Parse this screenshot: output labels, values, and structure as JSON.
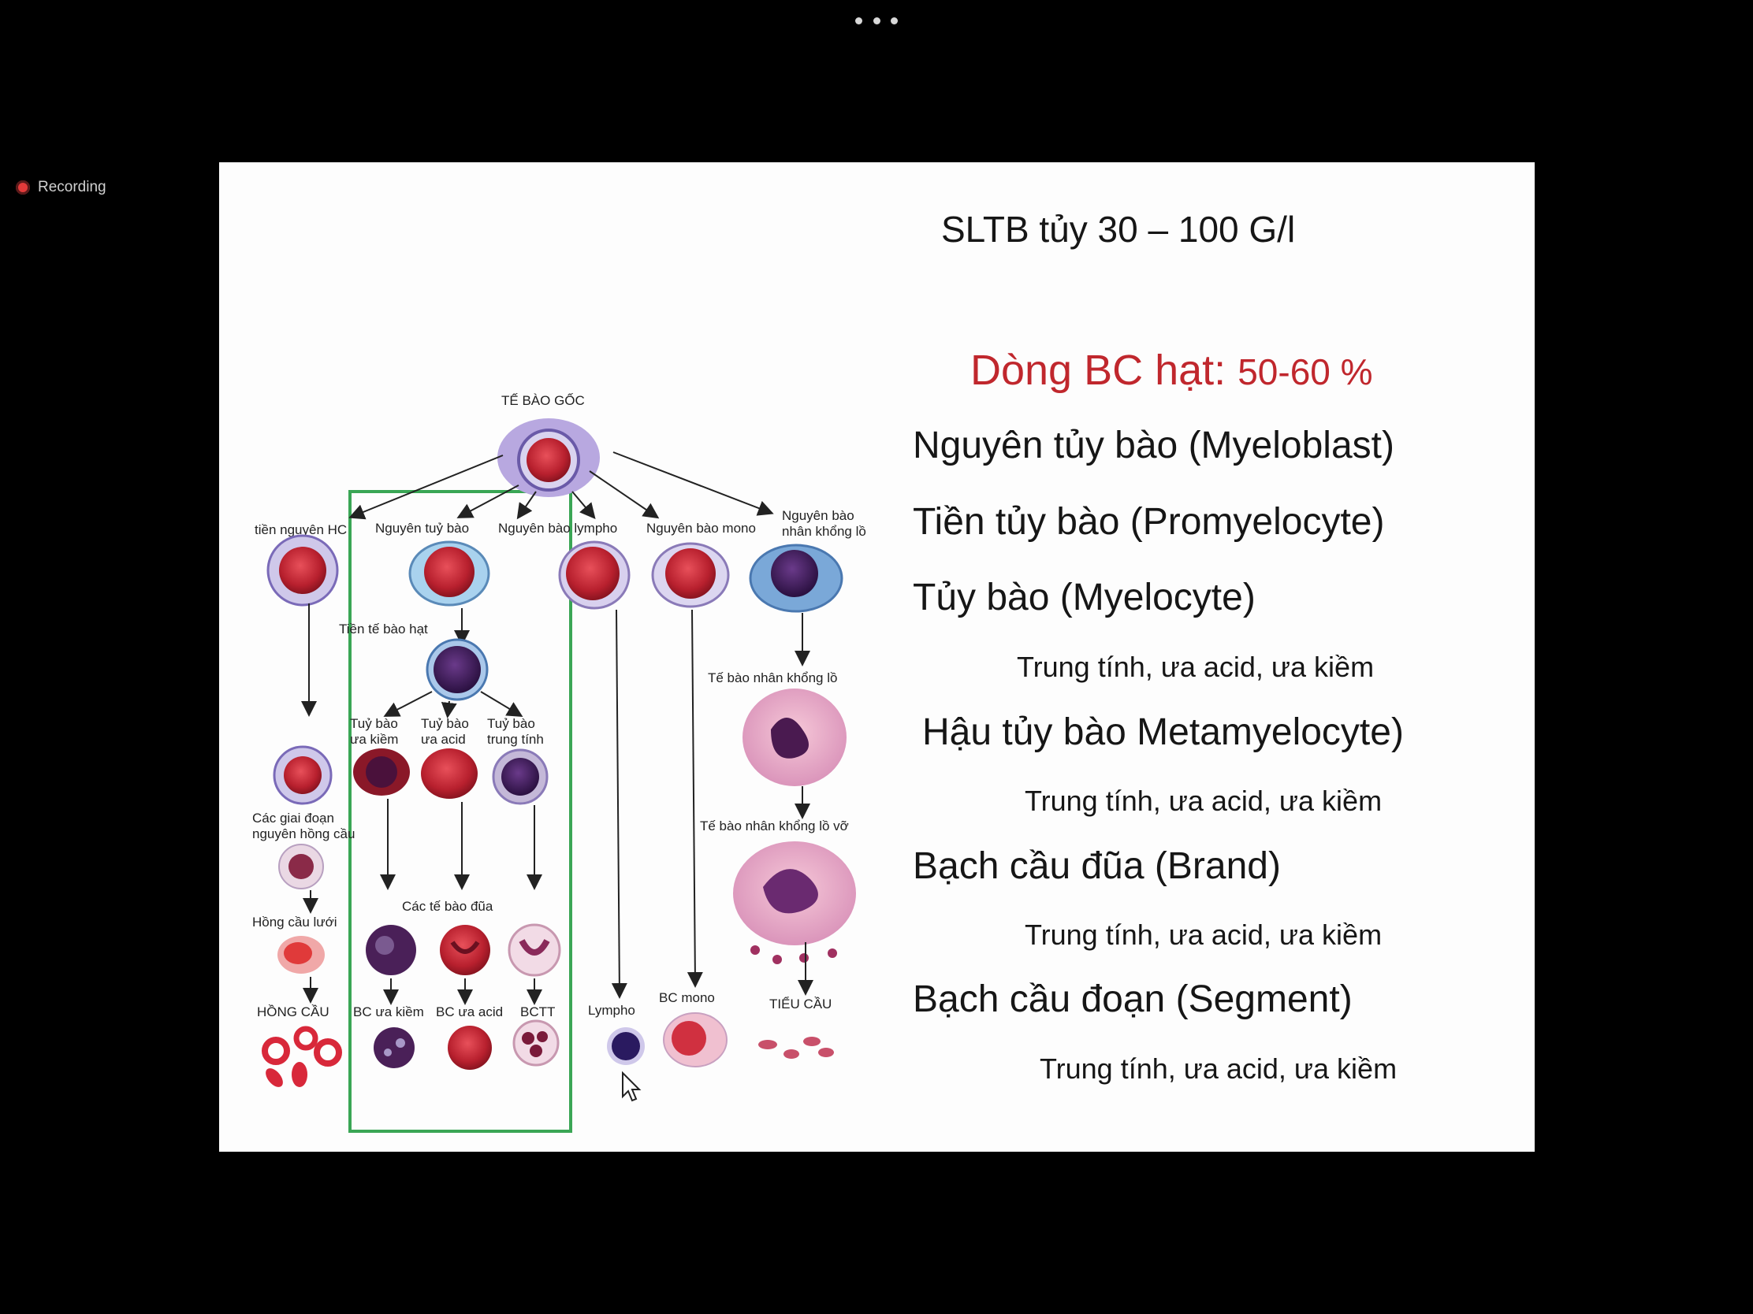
{
  "toolbar": {
    "more_icon": "more-horizontal-icon"
  },
  "recording": {
    "label": "Recording",
    "icon": "record-dot-icon",
    "color": "#e23a3a"
  },
  "slide": {
    "title": "SLTB tủy 30 – 100 G/l",
    "section_title": "Dòng BC hạt:",
    "section_percent": "50-60 %",
    "section_color": "#c0272d",
    "lines": [
      {
        "main": "Nguyên tủy bào (Myeloblast)"
      },
      {
        "main": "Tiền tủy bào (Promyelocyte)"
      },
      {
        "main": "Tủy bào (Myelocyte)",
        "sub": "Trung tính, ưa acid, ưa kiềm"
      },
      {
        "main": "Hậu tủy bào Metamyelocyte)",
        "sub": "Trung tính, ưa acid, ưa kiềm"
      },
      {
        "main": "Bạch cầu đũa (Brand)",
        "sub": "Trung tính, ưa acid, ưa kiềm"
      },
      {
        "main": "Bạch cầu đoạn (Segment)",
        "sub": "Trung tính, ưa acid, ưa kiềm"
      }
    ]
  },
  "diagram": {
    "highlight_color": "#3aa655",
    "labels": {
      "stem": "TẾ BÀO GỐC",
      "tien_nguyen_hc": "tiền nguyên HC",
      "nguyen_tuy_bao": "Nguyên tuỷ bào",
      "nguyen_bao_lympho": "Nguyên bào lympho",
      "nguyen_bao_mono": "Nguyên bào mono",
      "nguyen_bao_nhan_1": "Nguyên bào",
      "nguyen_bao_nhan_2": "nhân khổng lồ",
      "tien_te_bao_hat": "Tiền tế bào hạt",
      "tuy_bao_ua_kiem_1": "Tuỷ bào",
      "tuy_bao_ua_kiem_2": "ưa kiềm",
      "tuy_bao_ua_acid_1": "Tuỷ bào",
      "tuy_bao_ua_acid_2": "ưa acid",
      "tuy_bao_trung_tinh_1": "Tuỷ bào",
      "tuy_bao_trung_tinh_2": "trung tính",
      "te_bao_nhan_khong_lo": "Tế bào nhân khổng lồ",
      "cac_giai_doan_1": "Các giai đoạn",
      "cac_giai_doan_2": "nguyên hồng cầu",
      "te_bao_nhan_khong_lo_vo": "Tế bào nhân khổng lồ vỡ",
      "cac_te_bao_dua": "Các tế bào đũa",
      "hong_cau_luoi": "Hồng cầu lưới",
      "hong_cau": "HỒNG CẦU",
      "bc_ua_kiem": "BC ưa kiềm",
      "bc_ua_acid": "BC ưa acid",
      "bctt": "BCTT",
      "lympho": "Lympho",
      "bc_mono": "BC mono",
      "tieu_cau": "TIỂU CẦU"
    }
  }
}
